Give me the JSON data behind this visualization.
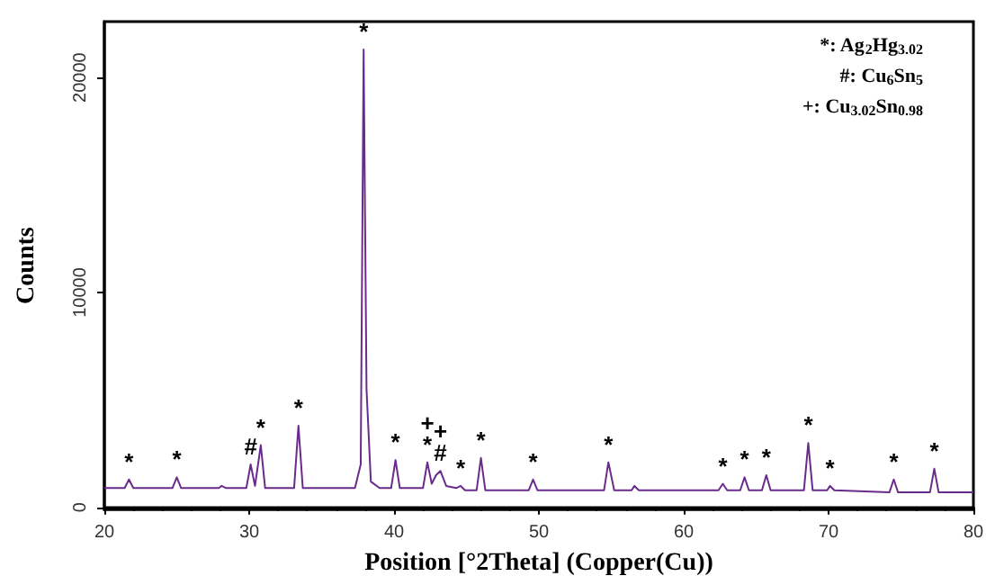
{
  "chart_data": {
    "type": "line",
    "xlabel": "Position [°2Theta] (Copper(Cu))",
    "ylabel": "Counts",
    "xlim": [
      20,
      80
    ],
    "xticks": [
      20,
      30,
      40,
      50,
      60,
      70,
      80
    ],
    "ylim": [
      -100,
      22600
    ],
    "yticks": [
      0,
      10000,
      20000
    ],
    "grid": false,
    "marker": "none",
    "line_style": "solid",
    "series": [
      {
        "color": "#6a2c8c",
        "x": [
          20,
          21.4,
          21.7,
          22.0,
          24.7,
          25.0,
          25.3,
          27.9,
          28.1,
          28.4,
          29.8,
          30.1,
          30.4,
          30.8,
          31.1,
          33.1,
          33.4,
          33.7,
          37.3,
          37.7,
          37.9,
          38.1,
          38.4,
          39.0,
          39.8,
          40.1,
          40.4,
          42.0,
          42.3,
          42.6,
          42.9,
          43.2,
          43.6,
          44.3,
          44.6,
          44.9,
          45.7,
          46.0,
          46.3,
          49.3,
          49.6,
          49.9,
          54.5,
          54.8,
          55.2,
          56.4,
          56.6,
          56.9,
          62.4,
          62.7,
          63.0,
          63.9,
          64.2,
          64.5,
          65.4,
          65.7,
          66.0,
          68.3,
          68.6,
          68.9,
          69.9,
          70.1,
          70.4,
          74.2,
          74.5,
          74.8,
          77.0,
          77.3,
          77.6,
          80
        ],
        "values": [
          900,
          900,
          1300,
          900,
          900,
          1400,
          900,
          900,
          1000,
          900,
          900,
          2000,
          1000,
          2900,
          900,
          900,
          3800,
          900,
          900,
          2000,
          21300,
          5500,
          1200,
          900,
          900,
          2200,
          900,
          900,
          2100,
          1100,
          1500,
          1700,
          1000,
          900,
          1000,
          800,
          800,
          2300,
          800,
          800,
          1300,
          800,
          800,
          2100,
          800,
          800,
          1000,
          800,
          800,
          1100,
          800,
          800,
          1400,
          800,
          800,
          1500,
          800,
          800,
          3000,
          800,
          800,
          1000,
          800,
          700,
          1300,
          700,
          700,
          1800,
          700,
          700
        ]
      }
    ],
    "annotations": [
      "*: Ag$_{2}$Hg$_{3.02}$",
      "#: Cu$_{6}$Sn$_{5}$",
      "+: Cu$_{3.02}$Sn$_{0.98}$",
      {
        "text": "*",
        "x": 21.7,
        "y": 1300
      },
      {
        "text": "*",
        "x": 25.0,
        "y": 1400
      },
      {
        "text": "#",
        "x": 30.1,
        "y": 2000
      },
      {
        "text": "*",
        "x": 30.8,
        "y": 2900
      },
      {
        "text": "*",
        "x": 33.4,
        "y": 3800
      },
      {
        "text": "*",
        "x": 37.9,
        "y": 21300
      },
      {
        "text": "*",
        "x": 40.1,
        "y": 2200
      },
      {
        "text": "+\n*",
        "x": 42.3,
        "y": 2100
      },
      {
        "text": "+\n#",
        "x": 43.2,
        "y": 1700
      },
      {
        "text": "*",
        "x": 44.6,
        "y": 1000
      },
      {
        "text": "*",
        "x": 46.0,
        "y": 2300
      },
      {
        "text": "*",
        "x": 49.6,
        "y": 1300
      },
      {
        "text": "*",
        "x": 54.8,
        "y": 2100
      },
      {
        "text": "*",
        "x": 62.7,
        "y": 1100
      },
      {
        "text": "*",
        "x": 64.2,
        "y": 1400
      },
      {
        "text": "*",
        "x": 65.7,
        "y": 1500
      },
      {
        "text": "*",
        "x": 68.6,
        "y": 3000
      },
      {
        "text": "*",
        "x": 70.1,
        "y": 1000
      },
      {
        "text": "*",
        "x": 74.5,
        "y": 1300
      },
      {
        "text": "*",
        "x": 77.3,
        "y": 1800
      }
    ]
  }
}
